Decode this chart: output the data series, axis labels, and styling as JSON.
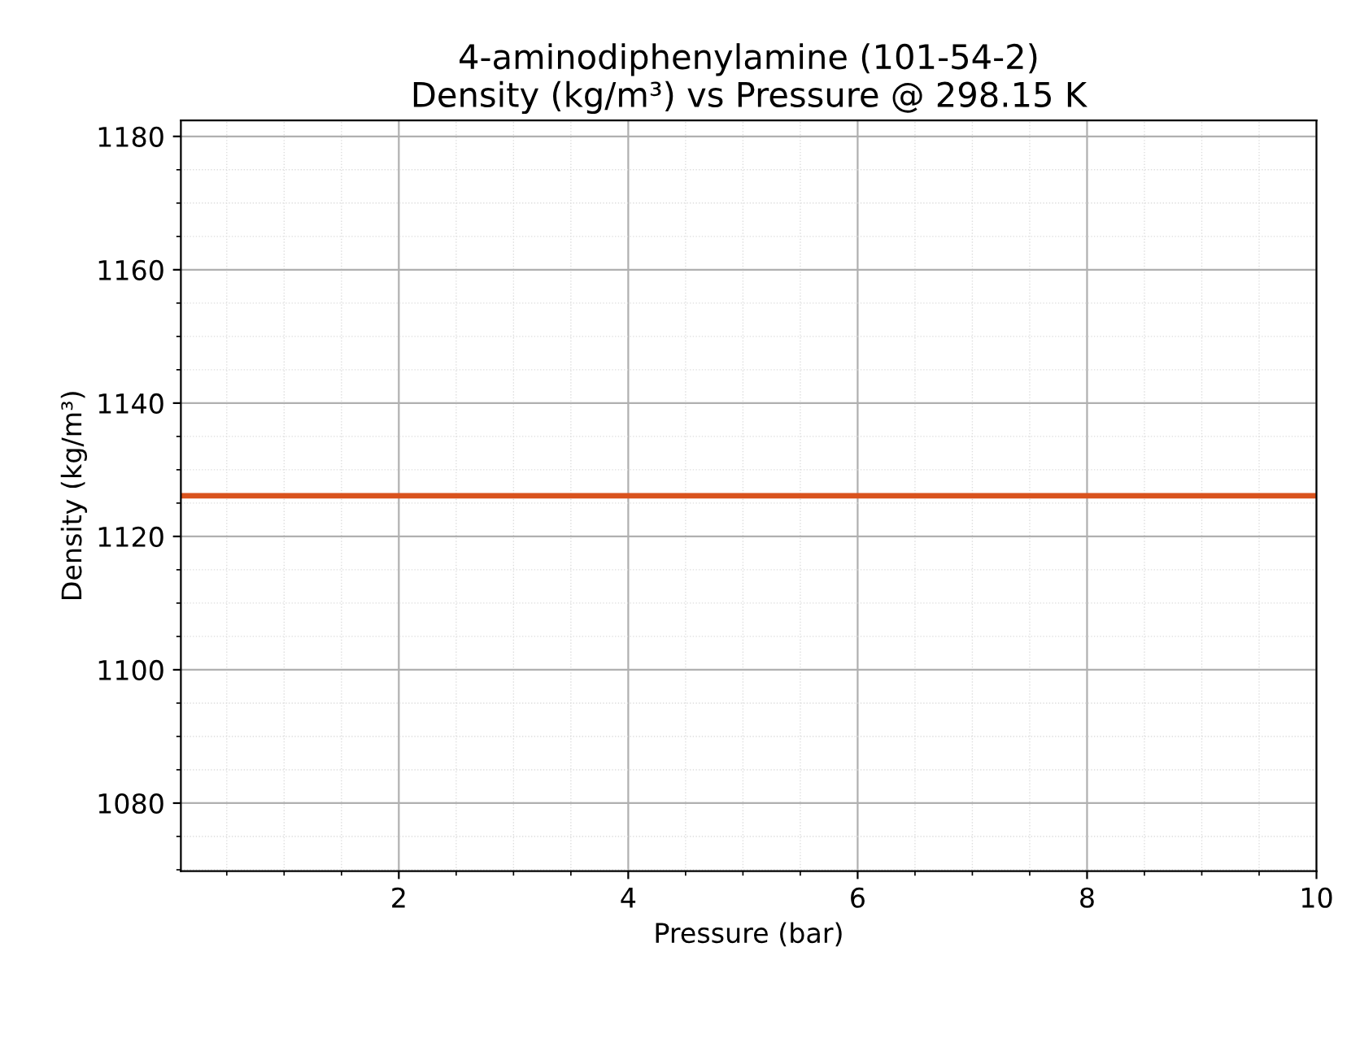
{
  "chart_data": {
    "type": "line",
    "title": "4-aminodiphenylamine (101-54-2)\nDensity (kg/m³) vs Pressure @ 298.15 K",
    "xlabel": "Pressure (bar)",
    "ylabel": "Density (kg/m³)",
    "x": [
      0.1,
      10
    ],
    "series": [
      {
        "color": "#d9531e",
        "values": [
          1126.1,
          1126.1
        ]
      }
    ],
    "xlim": [
      0.1,
      10
    ],
    "xticks": [
      2,
      4,
      6,
      8,
      10
    ],
    "ylim": [
      1069.8,
      1182.4
    ],
    "yticks": [
      1080,
      1100,
      1120,
      1140,
      1160,
      1180
    ],
    "grid": true,
    "legend": false,
    "marker": "none",
    "line_style": "solid"
  }
}
